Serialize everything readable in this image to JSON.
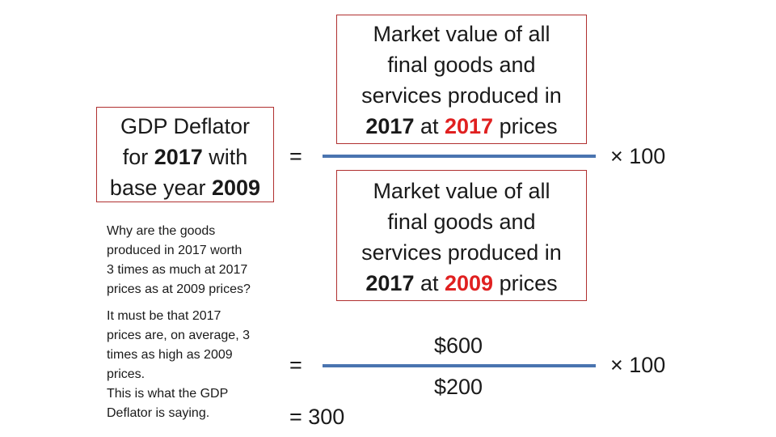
{
  "left_box": {
    "line1": "GDP Deflator",
    "line2_pre": "for ",
    "line2_bold": "2017",
    "line2_post": " with",
    "line3_pre": "base year ",
    "line3_bold": "2009"
  },
  "numerator": {
    "line1": "Market value of all",
    "line2": "final goods and",
    "line3": "services produced in",
    "line4_year": "2017",
    "line4_at": " at ",
    "line4_price_year": "2017",
    "line4_post": " prices"
  },
  "denominator": {
    "line1": "Market value of all",
    "line2": "final goods and",
    "line3": "services produced in",
    "line4_year": "2017",
    "line4_at": " at ",
    "line4_price_year": "2009",
    "line4_post": " prices"
  },
  "equals_sign": "=",
  "multiplier": "× 100",
  "numeric": {
    "numerator": "$600",
    "denominator": "$200",
    "result": "=  300"
  },
  "notes": {
    "question_lines": [
      "Why are the goods",
      "produced in 2017 worth",
      "3 times as much at 2017",
      "prices as at 2009 prices?"
    ],
    "answer_lines": [
      "It must be that 2017",
      "prices are, on average, 3",
      "times as high as 2009",
      "prices.",
      "This is what the GDP",
      "Deflator is saying."
    ]
  },
  "colors": {
    "box_border": "#b03030",
    "highlight": "#e02020",
    "fraction_line": "#4a74b0"
  }
}
